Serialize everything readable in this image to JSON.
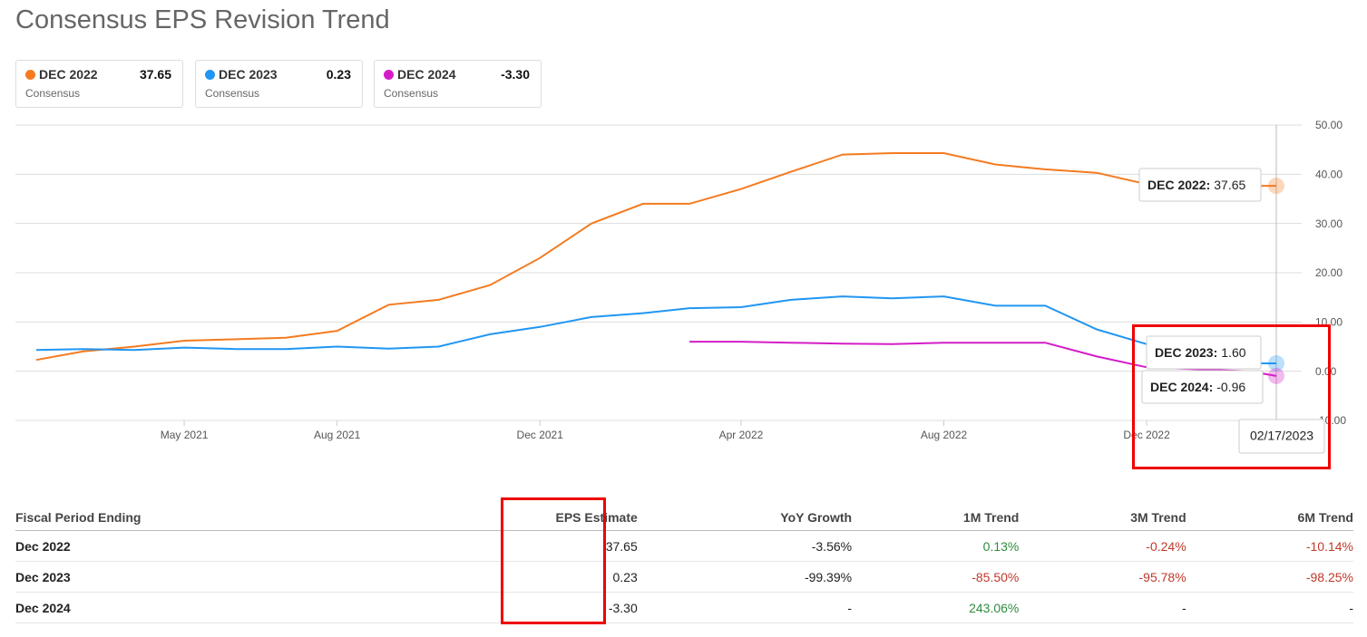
{
  "chart_data": {
    "type": "line",
    "title": "Consensus EPS Revision Trend",
    "x": [
      "2021-02",
      "2021-03",
      "2021-04",
      "2021-05",
      "2021-06",
      "2021-07",
      "2021-08",
      "2021-09",
      "2021-10",
      "2021-11",
      "2021-12",
      "2022-01",
      "2022-02",
      "2022-03",
      "2022-04",
      "2022-05",
      "2022-06",
      "2022-07",
      "2022-08",
      "2022-09",
      "2022-10",
      "2022-11",
      "2022-12",
      "2023-01",
      "2023-02",
      "2023-02-17"
    ],
    "series": [
      {
        "name": "DEC 2022",
        "color": "#f47b20",
        "values": [
          2.3,
          4.0,
          5.0,
          6.2,
          6.5,
          6.8,
          8.2,
          13.5,
          14.5,
          17.5,
          23,
          30,
          34,
          34,
          37,
          40.5,
          44,
          44.3,
          44.3,
          42,
          41,
          40.3,
          38,
          37.7,
          37.65,
          37.65
        ]
      },
      {
        "name": "DEC 2023",
        "color": "#2196f3",
        "values": [
          4.3,
          4.5,
          4.3,
          4.8,
          4.5,
          4.5,
          5.0,
          4.6,
          5.0,
          7.5,
          9.0,
          11,
          11.8,
          12.8,
          13,
          14.5,
          15.2,
          14.8,
          15.2,
          13.3,
          13.3,
          8.5,
          5.5,
          3,
          1.6,
          1.6
        ]
      },
      {
        "name": "DEC 2024",
        "color": "#d41dc8",
        "values": [
          null,
          null,
          null,
          null,
          null,
          null,
          null,
          null,
          null,
          null,
          null,
          null,
          null,
          6.0,
          6.0,
          5.8,
          5.6,
          5.5,
          5.8,
          5.8,
          5.8,
          3.0,
          0.8,
          0.4,
          0,
          -0.96
        ]
      }
    ],
    "xlim": [
      "2021-02",
      "2023-02-17"
    ],
    "xticks": [
      {
        "value": "2021-05",
        "label": "May 2021"
      },
      {
        "value": "2021-08",
        "label": "Aug 2021"
      },
      {
        "value": "2021-12",
        "label": "Dec 2021"
      },
      {
        "value": "2022-04",
        "label": "Apr 2022"
      },
      {
        "value": "2022-08",
        "label": "Aug 2022"
      },
      {
        "value": "2022-12",
        "label": "Dec 2022"
      }
    ],
    "ylim": [
      -10,
      50
    ],
    "yticks": [
      {
        "value": -10,
        "label": "-10.00"
      },
      {
        "value": 0,
        "label": "0.00"
      },
      {
        "value": 10,
        "label": "10.00"
      },
      {
        "value": 20,
        "label": "20.00"
      },
      {
        "value": 30,
        "label": "30.00"
      },
      {
        "value": 40,
        "label": "40.00"
      },
      {
        "value": 50,
        "label": "50.00"
      }
    ],
    "grid": true,
    "tooltips": [
      {
        "name": "DEC 2022:",
        "value": "37.65"
      },
      {
        "name": "DEC 2023:",
        "value": "1.60"
      },
      {
        "name": "DEC 2024:",
        "value": "-0.96"
      }
    ],
    "date_label": "02/17/2023"
  },
  "cards": [
    {
      "value": "37.65",
      "label": "Consensus"
    },
    {
      "value": "0.23",
      "label": "Consensus"
    },
    {
      "value": "-3.30",
      "label": "Consensus"
    }
  ],
  "table": {
    "header": [
      "Fiscal Period Ending",
      "EPS Estimate",
      "YoY Growth",
      "1M Trend",
      "3M Trend",
      "6M Trend"
    ],
    "rows": [
      [
        "Dec 2022",
        "37.65",
        "-3.56%",
        "0.13%",
        "-0.24%",
        "-10.14%"
      ],
      [
        "Dec 2023",
        "0.23",
        "-99.39%",
        "-85.50%",
        "-95.78%",
        "-98.25%"
      ],
      [
        "Dec 2024",
        "-3.30",
        "-",
        "243.06%",
        "-",
        "-"
      ]
    ]
  }
}
